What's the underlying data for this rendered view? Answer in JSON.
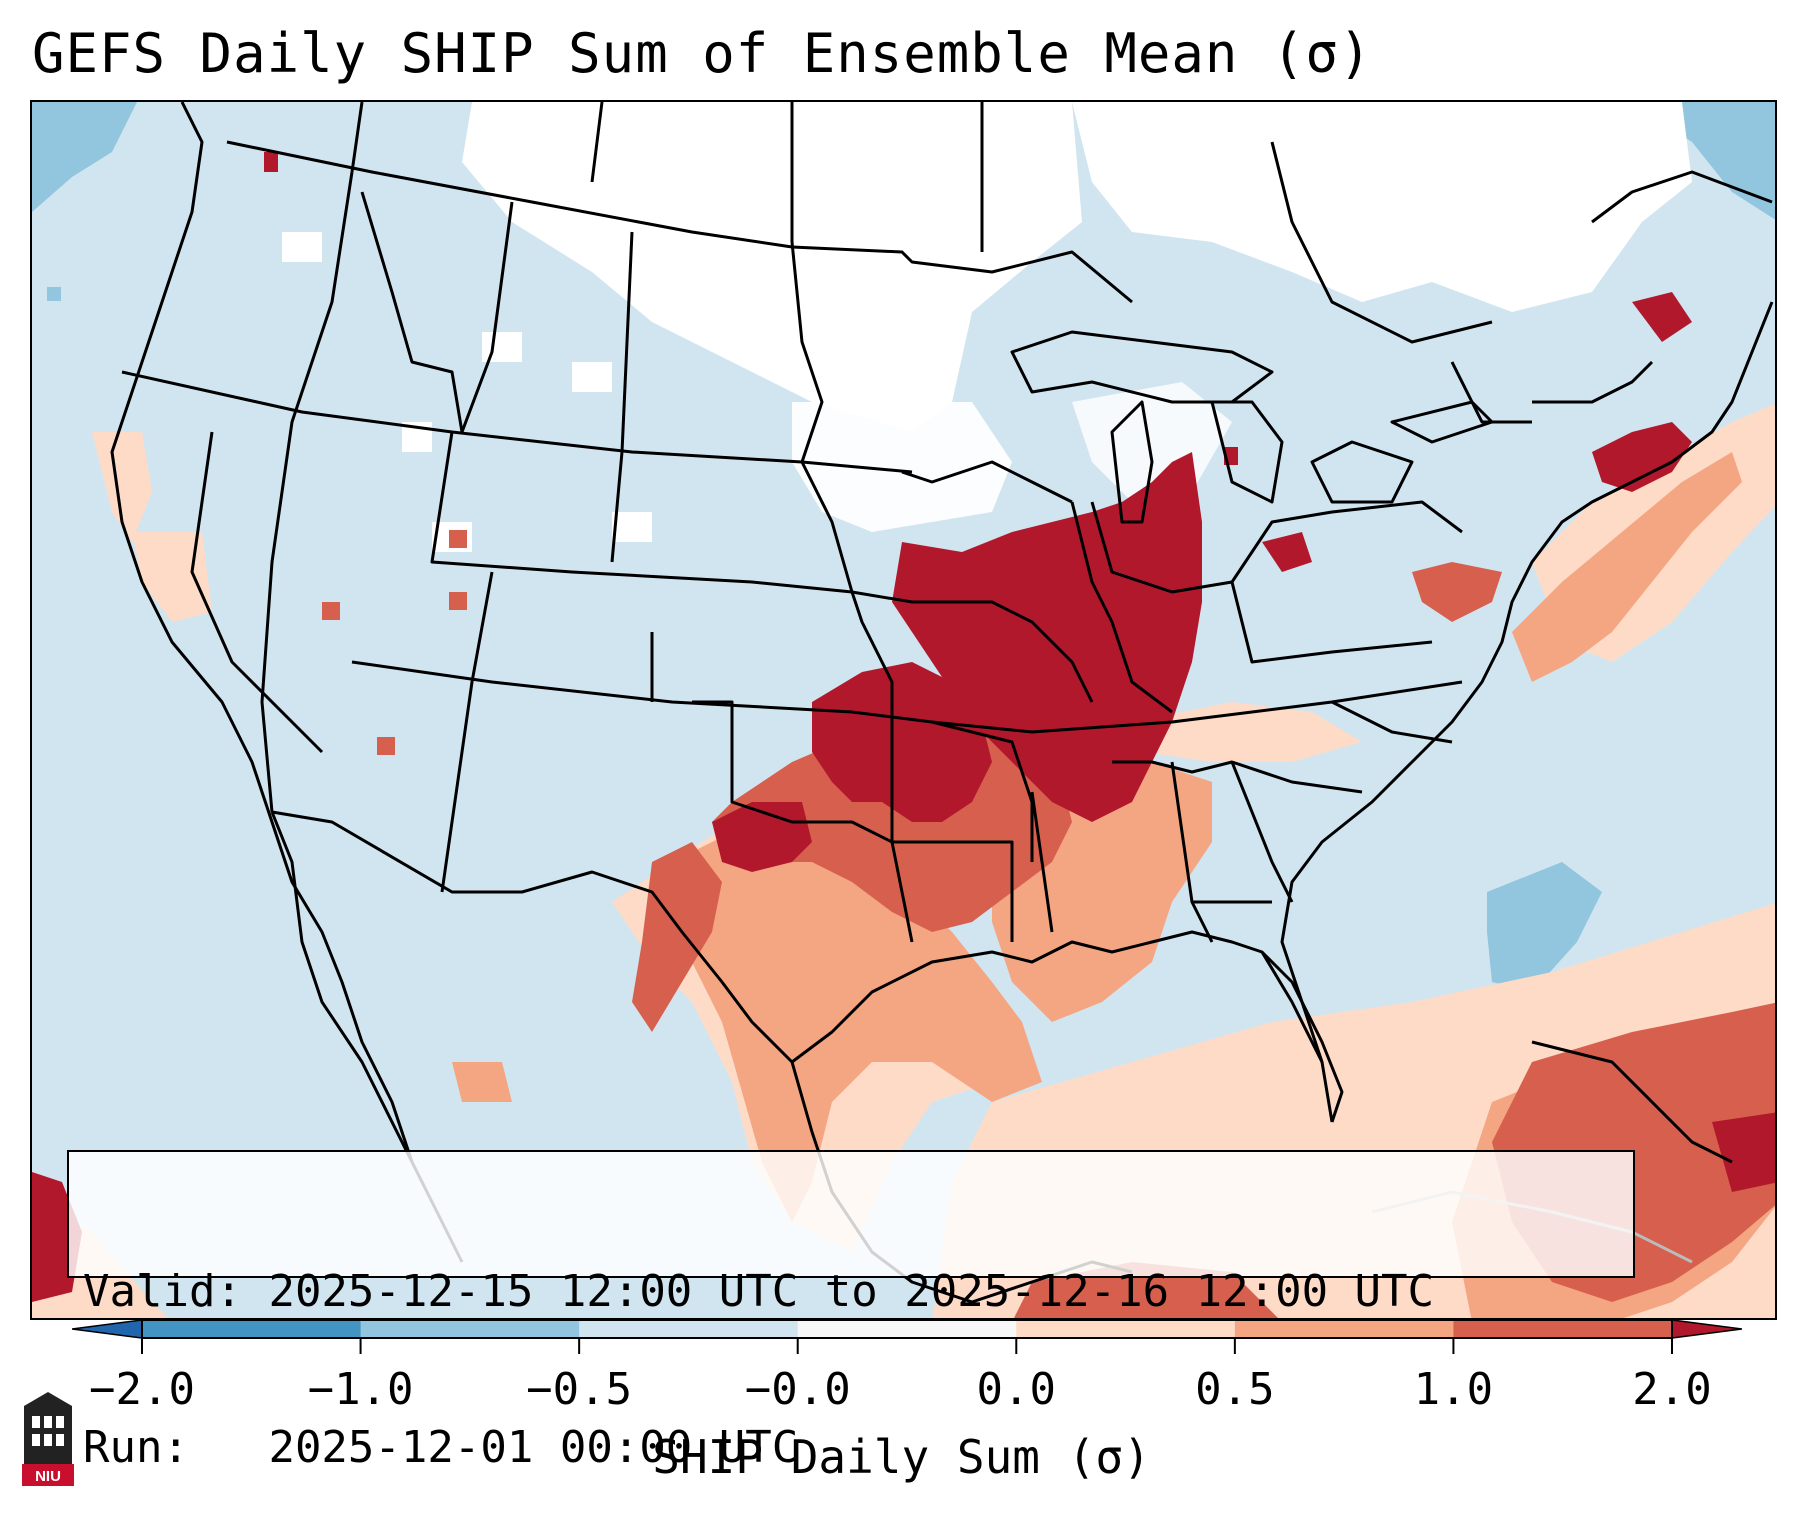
{
  "title": "GEFS Daily SHIP Sum of Ensemble Mean (σ)",
  "valid_label": "Valid:",
  "valid_value": "2025-12-15 12:00 UTC to 2025-12-16 12:00 UTC",
  "run_label": "Run:",
  "run_value": "2025-12-01 00:00 UTC",
  "colorbar": {
    "label": "SHIP Daily Sum (σ)",
    "ticks": [
      "−2.0",
      "−1.0",
      "−0.5",
      "−0.0",
      "0.0",
      "0.5",
      "1.0",
      "2.0"
    ],
    "bins": [
      "#4393c3",
      "#92c5de",
      "#d1e5f0",
      "#f7f7f7",
      "#fddbc7",
      "#f4a582",
      "#d6604d"
    ],
    "under_color": "#2166ac",
    "over_color": "#b2182b"
  },
  "map": {
    "background_color": "#d1e5f0",
    "no_data_color": "#ffffff",
    "category_colors": {
      "minus_1_to_minus_0_5": "#92c5de",
      "zero_to_0_5": "#fddbc7",
      "0_5_to_1": "#f4a582",
      "1_to_2": "#d6604d",
      "above_2": "#b2182b"
    }
  },
  "logo": {
    "text": "NIU",
    "color": "#c8102e"
  }
}
